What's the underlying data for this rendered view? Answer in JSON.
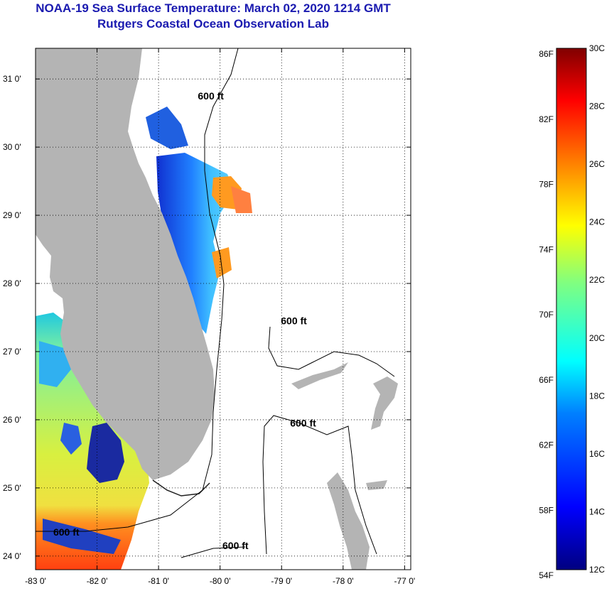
{
  "header": {
    "title": "NOAA-19 Sea Surface Temperature:  March 02, 2020 1214 GMT",
    "subtitle": "Rutgers Coastal Ocean Observation Lab"
  },
  "map": {
    "lon_range": [
      -83,
      -76.9
    ],
    "lat_range": [
      23.8,
      31.45
    ],
    "lon_ticks": [
      {
        "value": -83,
        "label": "-83 0'"
      },
      {
        "value": -82,
        "label": "-82 0'"
      },
      {
        "value": -81,
        "label": "-81 0'"
      },
      {
        "value": -80,
        "label": "-80 0'"
      },
      {
        "value": -79,
        "label": "-79 0'"
      },
      {
        "value": -78,
        "label": "-78 0'"
      },
      {
        "value": -77,
        "label": "-77 0'"
      }
    ],
    "lat_ticks": [
      {
        "value": 24,
        "label": "24 0'"
      },
      {
        "value": 25,
        "label": "25 0'"
      },
      {
        "value": 26,
        "label": "26 0'"
      },
      {
        "value": 27,
        "label": "27 0'"
      },
      {
        "value": 28,
        "label": "28 0'"
      },
      {
        "value": 29,
        "label": "29 0'"
      },
      {
        "value": 30,
        "label": "30 0'"
      },
      {
        "value": 31,
        "label": "31 0'"
      }
    ],
    "contour_labels": [
      {
        "text": "600 ft",
        "lon": -80.15,
        "lat": 30.7
      },
      {
        "text": "600 ft",
        "lon": -78.8,
        "lat": 27.4
      },
      {
        "text": "600 ft",
        "lon": -78.65,
        "lat": 25.9
      },
      {
        "text": "600 ft",
        "lon": -79.75,
        "lat": 24.1
      },
      {
        "text": "600 ft",
        "lon": -82.5,
        "lat": 24.3
      }
    ],
    "colors": {
      "land": "#b4b4b4",
      "ocean_nodata": "#ffffff",
      "contour": "#000000"
    }
  },
  "colorbar": {
    "f_labels": [
      "86F",
      "82F",
      "78F",
      "74F",
      "70F",
      "66F",
      "62F",
      "58F",
      "54F"
    ],
    "c_labels": [
      "30C",
      "28C",
      "26C",
      "24C",
      "22C",
      "20C",
      "18C",
      "16C",
      "14C",
      "12C"
    ],
    "colors": [
      "#000080",
      "#0000ff",
      "#0080ff",
      "#00ffff",
      "#80ff80",
      "#ffff00",
      "#ff8000",
      "#ff0000",
      "#800000"
    ]
  }
}
